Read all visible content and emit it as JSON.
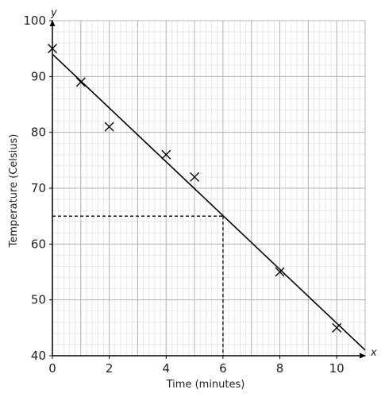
{
  "chart_data": {
    "type": "scatter",
    "xlabel": "Time (minutes)",
    "ylabel": "Temperature (Celsius)",
    "x_axis_letter": "x",
    "y_axis_letter": "y",
    "xlim": [
      0,
      11
    ],
    "ylim": [
      40,
      100
    ],
    "x_ticks": [
      "0",
      "2",
      "4",
      "6",
      "8",
      "10"
    ],
    "x_tick_values": [
      0,
      2,
      4,
      6,
      8,
      10
    ],
    "y_ticks": [
      "40",
      "50",
      "60",
      "70",
      "80",
      "90",
      "100"
    ],
    "y_tick_values": [
      40,
      50,
      60,
      70,
      80,
      90,
      100
    ],
    "grid": true,
    "minor_grid_step": {
      "x": 0.2,
      "y": 2
    },
    "points": [
      {
        "x": 0,
        "y": 95
      },
      {
        "x": 1,
        "y": 89
      },
      {
        "x": 2,
        "y": 81
      },
      {
        "x": 4,
        "y": 76
      },
      {
        "x": 5,
        "y": 72
      },
      {
        "x": 8,
        "y": 55
      },
      {
        "x": 10,
        "y": 45
      }
    ],
    "marker": "x",
    "line_of_best_fit": {
      "x1": 0,
      "y1": 94,
      "x2": 11,
      "y2": 41
    },
    "reading_guide": {
      "x": 6,
      "y": 65
    }
  }
}
